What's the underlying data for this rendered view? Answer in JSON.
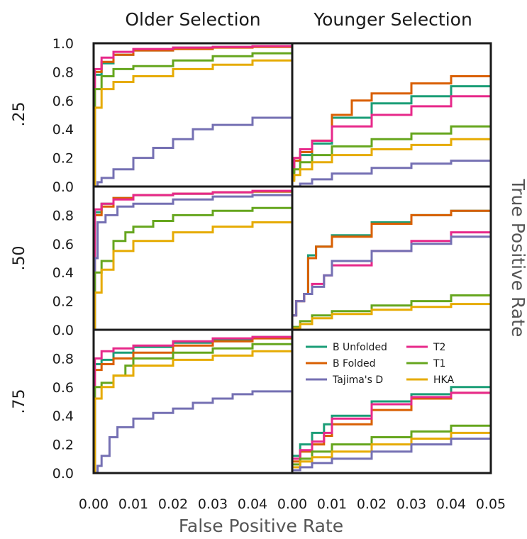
{
  "figure": {
    "xlabel": "False Positive Rate",
    "ylabel": "True Positive Rate",
    "col_titles": [
      "Older Selection",
      "Younger Selection"
    ],
    "row_labels": [
      ".25",
      ".50",
      ".75"
    ],
    "x_ticks": [
      "0.00",
      "0.01",
      "0.02",
      "0.03",
      "0.04",
      "0.05"
    ],
    "y_ticks_top": [
      "0.0",
      "0.2",
      "0.4",
      "0.6",
      "0.8",
      "1.0"
    ],
    "y_ticks": [
      "0.0",
      "0.2",
      "0.4",
      "0.6",
      "0.8"
    ]
  },
  "chart_data": {
    "type": "line",
    "xlabel": "False Positive Rate",
    "ylabel": "True Positive Rate",
    "xlim": [
      0,
      0.05
    ],
    "ylim": [
      0,
      1.0
    ],
    "grid": false,
    "legend": {
      "placement": "inside bottom-right panel, upper area",
      "entries": [
        {
          "name": "B Unfolded",
          "color": "#1b9e77"
        },
        {
          "name": "T2",
          "color": "#e7298a"
        },
        {
          "name": "B Folded",
          "color": "#d95f02"
        },
        {
          "name": "T1",
          "color": "#66a61e"
        },
        {
          "name": "Tajima's D",
          "color": "#7570b3"
        },
        {
          "name": "HKA",
          "color": "#e6ab02"
        }
      ]
    },
    "panels": [
      {
        "column": "Older Selection",
        "row": ".25",
        "series": [
          {
            "name": "B Unfolded",
            "x": [
              0,
              0.0003,
              0.002,
              0.005,
              0.01,
              0.02,
              0.03,
              0.04,
              0.05
            ],
            "y": [
              0,
              0.78,
              0.86,
              0.92,
              0.95,
              0.97,
              0.975,
              0.98,
              0.985
            ]
          },
          {
            "name": "B Folded",
            "x": [
              0,
              0.0003,
              0.002,
              0.005,
              0.01,
              0.02,
              0.03,
              0.04,
              0.05
            ],
            "y": [
              0,
              0.8,
              0.87,
              0.92,
              0.95,
              0.96,
              0.97,
              0.975,
              0.98
            ]
          },
          {
            "name": "T2",
            "x": [
              0,
              0.0003,
              0.002,
              0.005,
              0.01,
              0.02,
              0.03,
              0.04,
              0.05
            ],
            "y": [
              0,
              0.82,
              0.9,
              0.94,
              0.96,
              0.97,
              0.975,
              0.98,
              0.985
            ]
          },
          {
            "name": "T1",
            "x": [
              0,
              0.0003,
              0.002,
              0.005,
              0.01,
              0.02,
              0.03,
              0.04,
              0.05
            ],
            "y": [
              0,
              0.68,
              0.77,
              0.82,
              0.84,
              0.88,
              0.91,
              0.93,
              0.95
            ]
          },
          {
            "name": "HKA",
            "x": [
              0,
              0.0003,
              0.002,
              0.005,
              0.01,
              0.02,
              0.03,
              0.04,
              0.05
            ],
            "y": [
              0,
              0.55,
              0.68,
              0.73,
              0.77,
              0.82,
              0.85,
              0.88,
              0.91
            ]
          },
          {
            "name": "Tajima's D",
            "x": [
              0,
              0.001,
              0.002,
              0.005,
              0.01,
              0.015,
              0.02,
              0.025,
              0.03,
              0.04,
              0.05
            ],
            "y": [
              0,
              0.03,
              0.06,
              0.12,
              0.2,
              0.27,
              0.33,
              0.4,
              0.43,
              0.48,
              0.51
            ]
          }
        ]
      },
      {
        "column": "Younger Selection",
        "row": ".25",
        "series": [
          {
            "name": "B Unfolded",
            "x": [
              0,
              0.0005,
              0.002,
              0.005,
              0.01,
              0.02,
              0.03,
              0.04,
              0.05
            ],
            "y": [
              0.1,
              0.18,
              0.22,
              0.3,
              0.48,
              0.58,
              0.63,
              0.7,
              0.77
            ]
          },
          {
            "name": "B Folded",
            "x": [
              0,
              0.0005,
              0.002,
              0.005,
              0.01,
              0.015,
              0.02,
              0.03,
              0.04,
              0.05
            ],
            "y": [
              0.1,
              0.18,
              0.24,
              0.32,
              0.5,
              0.6,
              0.65,
              0.72,
              0.77,
              0.8
            ]
          },
          {
            "name": "T2",
            "x": [
              0,
              0.0005,
              0.002,
              0.005,
              0.01,
              0.02,
              0.03,
              0.04,
              0.05
            ],
            "y": [
              0.1,
              0.2,
              0.26,
              0.32,
              0.42,
              0.5,
              0.56,
              0.63,
              0.7
            ]
          },
          {
            "name": "T1",
            "x": [
              0,
              0.0005,
              0.002,
              0.005,
              0.01,
              0.02,
              0.03,
              0.04,
              0.05
            ],
            "y": [
              0.05,
              0.12,
              0.17,
              0.22,
              0.28,
              0.33,
              0.37,
              0.42,
              0.48
            ]
          },
          {
            "name": "HKA",
            "x": [
              0,
              0.0005,
              0.002,
              0.005,
              0.01,
              0.02,
              0.03,
              0.04,
              0.05
            ],
            "y": [
              0.04,
              0.08,
              0.12,
              0.17,
              0.22,
              0.26,
              0.29,
              0.33,
              0.37
            ]
          },
          {
            "name": "Tajima's D",
            "x": [
              0,
              0.002,
              0.005,
              0.01,
              0.02,
              0.03,
              0.04,
              0.05
            ],
            "y": [
              0,
              0.02,
              0.05,
              0.09,
              0.13,
              0.16,
              0.18,
              0.2
            ]
          }
        ]
      },
      {
        "column": "Older Selection",
        "row": ".50",
        "series": [
          {
            "name": "B Unfolded",
            "x": [
              0,
              0.0003,
              0.002,
              0.005,
              0.01,
              0.02,
              0.03,
              0.04,
              0.05
            ],
            "y": [
              0,
              0.82,
              0.88,
              0.92,
              0.94,
              0.95,
              0.96,
              0.965,
              0.97
            ]
          },
          {
            "name": "B Folded",
            "x": [
              0,
              0.0003,
              0.002,
              0.005,
              0.01,
              0.02,
              0.03,
              0.04,
              0.05
            ],
            "y": [
              0,
              0.8,
              0.86,
              0.92,
              0.94,
              0.95,
              0.96,
              0.965,
              0.97
            ]
          },
          {
            "name": "T2",
            "x": [
              0,
              0.0003,
              0.002,
              0.005,
              0.01,
              0.02,
              0.03,
              0.04,
              0.05
            ],
            "y": [
              0,
              0.84,
              0.88,
              0.91,
              0.94,
              0.95,
              0.96,
              0.97,
              0.975
            ]
          },
          {
            "name": "Tajima's D",
            "x": [
              0,
              0.0003,
              0.001,
              0.003,
              0.006,
              0.01,
              0.02,
              0.03,
              0.04,
              0.05
            ],
            "y": [
              0,
              0.5,
              0.75,
              0.8,
              0.86,
              0.88,
              0.91,
              0.93,
              0.94,
              0.95
            ]
          },
          {
            "name": "T1",
            "x": [
              0,
              0.0003,
              0.002,
              0.005,
              0.008,
              0.01,
              0.015,
              0.02,
              0.03,
              0.04,
              0.05
            ],
            "y": [
              0,
              0.4,
              0.48,
              0.62,
              0.68,
              0.72,
              0.76,
              0.8,
              0.83,
              0.85,
              0.87
            ]
          },
          {
            "name": "HKA",
            "x": [
              0,
              0.0003,
              0.002,
              0.005,
              0.01,
              0.02,
              0.03,
              0.04,
              0.05
            ],
            "y": [
              0,
              0.26,
              0.42,
              0.55,
              0.62,
              0.68,
              0.72,
              0.75,
              0.78
            ]
          }
        ]
      },
      {
        "column": "Younger Selection",
        "row": ".50",
        "series": [
          {
            "name": "B Unfolded",
            "x": [
              0,
              0.001,
              0.003,
              0.004,
              0.006,
              0.01,
              0.02,
              0.03,
              0.04,
              0.05
            ],
            "y": [
              0.1,
              0.2,
              0.25,
              0.52,
              0.58,
              0.66,
              0.75,
              0.8,
              0.83,
              0.85
            ]
          },
          {
            "name": "B Folded",
            "x": [
              0,
              0.001,
              0.003,
              0.004,
              0.006,
              0.01,
              0.02,
              0.03,
              0.04,
              0.05
            ],
            "y": [
              0.1,
              0.2,
              0.25,
              0.5,
              0.58,
              0.65,
              0.74,
              0.8,
              0.83,
              0.85
            ]
          },
          {
            "name": "T2",
            "x": [
              0,
              0.001,
              0.003,
              0.005,
              0.008,
              0.01,
              0.02,
              0.03,
              0.04,
              0.05
            ],
            "y": [
              0.1,
              0.2,
              0.25,
              0.32,
              0.38,
              0.45,
              0.55,
              0.62,
              0.68,
              0.73
            ]
          },
          {
            "name": "Tajima's D",
            "x": [
              0,
              0.001,
              0.003,
              0.005,
              0.008,
              0.01,
              0.02,
              0.03,
              0.04,
              0.05
            ],
            "y": [
              0.1,
              0.2,
              0.25,
              0.3,
              0.38,
              0.48,
              0.55,
              0.6,
              0.65,
              0.7
            ]
          },
          {
            "name": "T1",
            "x": [
              0,
              0.002,
              0.005,
              0.01,
              0.02,
              0.03,
              0.04,
              0.05
            ],
            "y": [
              0.02,
              0.06,
              0.1,
              0.13,
              0.17,
              0.2,
              0.24,
              0.27
            ]
          },
          {
            "name": "HKA",
            "x": [
              0,
              0.002,
              0.005,
              0.01,
              0.02,
              0.03,
              0.04,
              0.05
            ],
            "y": [
              0.01,
              0.04,
              0.08,
              0.11,
              0.14,
              0.16,
              0.18,
              0.2
            ]
          }
        ]
      },
      {
        "column": "Older Selection",
        "row": ".75",
        "series": [
          {
            "name": "B Unfolded",
            "x": [
              0,
              0.0003,
              0.002,
              0.005,
              0.01,
              0.02,
              0.03,
              0.04,
              0.05
            ],
            "y": [
              0,
              0.76,
              0.79,
              0.84,
              0.88,
              0.91,
              0.93,
              0.95,
              0.96
            ]
          },
          {
            "name": "B Folded",
            "x": [
              0,
              0.0003,
              0.002,
              0.005,
              0.01,
              0.02,
              0.03,
              0.04,
              0.05
            ],
            "y": [
              0,
              0.72,
              0.76,
              0.8,
              0.84,
              0.89,
              0.92,
              0.94,
              0.96
            ]
          },
          {
            "name": "T2",
            "x": [
              0,
              0.0003,
              0.002,
              0.005,
              0.01,
              0.02,
              0.03,
              0.04,
              0.05
            ],
            "y": [
              0,
              0.8,
              0.85,
              0.87,
              0.89,
              0.92,
              0.94,
              0.95,
              0.96
            ]
          },
          {
            "name": "T1",
            "x": [
              0,
              0.0003,
              0.002,
              0.005,
              0.008,
              0.01,
              0.02,
              0.03,
              0.04,
              0.05
            ],
            "y": [
              0,
              0.6,
              0.63,
              0.68,
              0.75,
              0.8,
              0.84,
              0.87,
              0.9,
              0.92
            ]
          },
          {
            "name": "HKA",
            "x": [
              0,
              0.0003,
              0.002,
              0.005,
              0.01,
              0.02,
              0.03,
              0.04,
              0.05
            ],
            "y": [
              0,
              0.52,
              0.6,
              0.68,
              0.75,
              0.79,
              0.82,
              0.85,
              0.88
            ]
          },
          {
            "name": "Tajima's D",
            "x": [
              0,
              0.001,
              0.002,
              0.004,
              0.006,
              0.01,
              0.015,
              0.02,
              0.025,
              0.03,
              0.035,
              0.04,
              0.05
            ],
            "y": [
              0,
              0.05,
              0.12,
              0.25,
              0.32,
              0.38,
              0.42,
              0.45,
              0.49,
              0.52,
              0.55,
              0.57,
              0.6
            ]
          }
        ]
      },
      {
        "column": "Younger Selection",
        "row": ".75",
        "series": [
          {
            "name": "B Unfolded",
            "x": [
              0,
              0.002,
              0.005,
              0.008,
              0.01,
              0.02,
              0.03,
              0.04,
              0.05
            ],
            "y": [
              0.12,
              0.2,
              0.28,
              0.34,
              0.4,
              0.5,
              0.55,
              0.6,
              0.63
            ]
          },
          {
            "name": "B Folded",
            "x": [
              0,
              0.002,
              0.005,
              0.008,
              0.01,
              0.02,
              0.03,
              0.04,
              0.05
            ],
            "y": [
              0.08,
              0.15,
              0.2,
              0.26,
              0.34,
              0.44,
              0.52,
              0.56,
              0.6
            ]
          },
          {
            "name": "T2",
            "x": [
              0,
              0.002,
              0.005,
              0.008,
              0.01,
              0.02,
              0.03,
              0.04,
              0.05
            ],
            "y": [
              0.1,
              0.16,
              0.22,
              0.28,
              0.38,
              0.48,
              0.53,
              0.56,
              0.58
            ]
          },
          {
            "name": "T1",
            "x": [
              0,
              0.002,
              0.005,
              0.01,
              0.02,
              0.03,
              0.04,
              0.05
            ],
            "y": [
              0.06,
              0.1,
              0.15,
              0.2,
              0.25,
              0.29,
              0.33,
              0.37
            ]
          },
          {
            "name": "HKA",
            "x": [
              0,
              0.002,
              0.005,
              0.01,
              0.02,
              0.03,
              0.04,
              0.05
            ],
            "y": [
              0.04,
              0.08,
              0.11,
              0.15,
              0.2,
              0.24,
              0.28,
              0.32
            ]
          },
          {
            "name": "Tajima's D",
            "x": [
              0,
              0.002,
              0.005,
              0.01,
              0.02,
              0.03,
              0.04,
              0.05
            ],
            "y": [
              0.02,
              0.04,
              0.07,
              0.1,
              0.15,
              0.2,
              0.24,
              0.29
            ]
          }
        ]
      }
    ]
  }
}
